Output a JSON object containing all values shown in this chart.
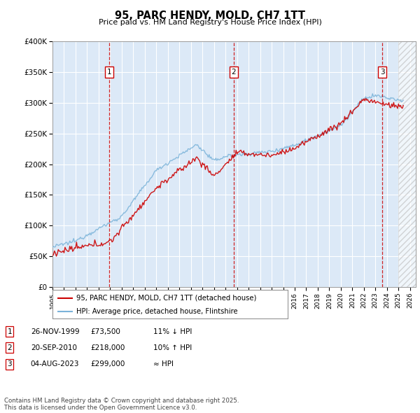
{
  "title": "95, PARC HENDY, MOLD, CH7 1TT",
  "subtitle": "Price paid vs. HM Land Registry's House Price Index (HPI)",
  "background_color": "#ffffff",
  "plot_bg_color": "#dce9f7",
  "grid_color": "#ffffff",
  "legend_line1": "95, PARC HENDY, MOLD, CH7 1TT (detached house)",
  "legend_line2": "HPI: Average price, detached house, Flintshire",
  "sale1_label": "1",
  "sale1_date": "26-NOV-1999",
  "sale1_price": "£73,500",
  "sale1_note": "11% ↓ HPI",
  "sale1_year": 1999.9,
  "sale1_value": 73500,
  "sale2_label": "2",
  "sale2_date": "20-SEP-2010",
  "sale2_price": "£218,000",
  "sale2_note": "10% ↑ HPI",
  "sale2_year": 2010.72,
  "sale2_value": 218000,
  "sale3_label": "3",
  "sale3_date": "04-AUG-2023",
  "sale3_price": "£299,000",
  "sale3_note": "≈ HPI",
  "sale3_year": 2023.59,
  "sale3_value": 299000,
  "hpi_color": "#7ab3d9",
  "price_color": "#cc0000",
  "vline_color": "#cc0000",
  "footer": "Contains HM Land Registry data © Crown copyright and database right 2025.\nThis data is licensed under the Open Government Licence v3.0.",
  "ylim": [
    0,
    400000
  ],
  "xlim_start": 1995,
  "xlim_end": 2026.5
}
